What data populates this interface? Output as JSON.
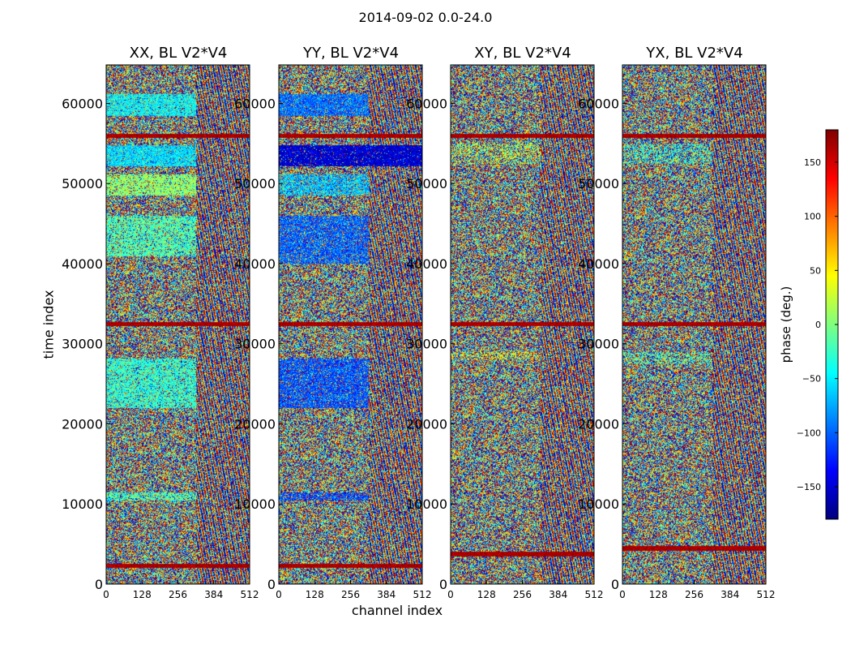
{
  "figure": {
    "suptitle": "2014-09-02 0.0-24.0",
    "xlabel": "channel index",
    "ylabel": "time index"
  },
  "colorbar": {
    "label": "phase (deg.)",
    "range": [
      -180,
      180
    ],
    "ticks": [
      150,
      100,
      50,
      0,
      -50,
      -100,
      -150
    ],
    "tick_labels": [
      "150",
      "100",
      "50",
      "0",
      "−50",
      "−100",
      "−150"
    ],
    "colormap": "jet",
    "stops": [
      "#00007f",
      "#0000ff",
      "#007fff",
      "#00ffff",
      "#7fff7f",
      "#ffff00",
      "#ff7f00",
      "#ff0000",
      "#7f0000"
    ]
  },
  "chart_data": {
    "type": "heatmap",
    "title": "2014-09-02 0.0-24.0",
    "xlabel": "channel index",
    "ylabel": "time index",
    "xlim": [
      0,
      512
    ],
    "ylim": [
      0,
      64800
    ],
    "xticks": [
      0,
      128,
      256,
      384,
      512
    ],
    "yticks": [
      0,
      10000,
      20000,
      30000,
      40000,
      50000,
      60000
    ],
    "value_label": "phase (deg.)",
    "value_range": [
      -180,
      180
    ],
    "panels": [
      {
        "title": "XX, BL V2*V4",
        "noise_phase_mean": 0,
        "coherent_bands": [
          {
            "t_start": 58500,
            "t_end": 61200,
            "ch_end": 320,
            "phase": -45,
            "strength": 0.8
          },
          {
            "t_start": 52200,
            "t_end": 54800,
            "ch_end": 320,
            "phase": -55,
            "strength": 0.85
          },
          {
            "t_start": 48500,
            "t_end": 51200,
            "ch_end": 320,
            "phase": 5,
            "strength": 0.75
          },
          {
            "t_start": 41000,
            "t_end": 46000,
            "ch_end": 320,
            "phase": -20,
            "strength": 0.65
          },
          {
            "t_start": 22000,
            "t_end": 28200,
            "ch_end": 320,
            "phase": -30,
            "strength": 0.7
          },
          {
            "t_start": 10500,
            "t_end": 11500,
            "ch_end": 320,
            "phase": -20,
            "strength": 0.6
          }
        ],
        "dark_lines": [
          56000,
          32500,
          2300
        ]
      },
      {
        "title": "YY, BL V2*V4",
        "noise_phase_mean": 0,
        "coherent_bands": [
          {
            "t_start": 58500,
            "t_end": 61200,
            "ch_end": 320,
            "phase": -95,
            "strength": 0.8
          },
          {
            "t_start": 52200,
            "t_end": 54800,
            "ch_end": 512,
            "phase": -150,
            "strength": 0.9
          },
          {
            "t_start": 48500,
            "t_end": 51200,
            "ch_end": 320,
            "phase": -65,
            "strength": 0.65
          },
          {
            "t_start": 40000,
            "t_end": 46000,
            "ch_end": 320,
            "phase": -100,
            "strength": 0.7
          },
          {
            "t_start": 22000,
            "t_end": 28200,
            "ch_end": 320,
            "phase": -105,
            "strength": 0.75
          },
          {
            "t_start": 10500,
            "t_end": 11500,
            "ch_end": 320,
            "phase": -110,
            "strength": 0.6
          }
        ],
        "dark_lines": [
          56000,
          32500,
          2300
        ]
      },
      {
        "title": "XY, BL V2*V4",
        "noise_phase_mean": 0,
        "coherent_bands": [
          {
            "t_start": 52500,
            "t_end": 55000,
            "ch_end": 320,
            "phase": 15,
            "strength": 0.3
          },
          {
            "t_start": 28000,
            "t_end": 29000,
            "ch_end": 320,
            "phase": 40,
            "strength": 0.3
          }
        ],
        "dark_lines": [
          56000,
          32500,
          3800
        ]
      },
      {
        "title": "YX, BL V2*V4",
        "noise_phase_mean": 0,
        "coherent_bands": [
          {
            "t_start": 52500,
            "t_end": 55000,
            "ch_end": 320,
            "phase": -30,
            "strength": 0.3
          },
          {
            "t_start": 27500,
            "t_end": 29000,
            "ch_end": 320,
            "phase": -20,
            "strength": 0.3
          }
        ],
        "dark_lines": [
          56000,
          32500,
          4500
        ]
      }
    ]
  }
}
